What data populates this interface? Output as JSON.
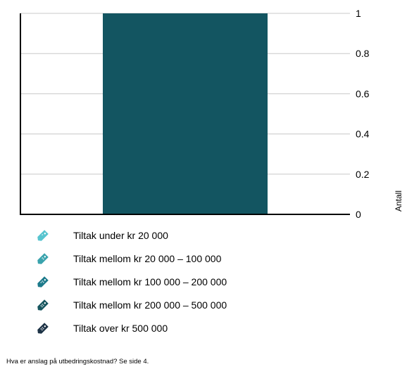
{
  "chart_data": {
    "type": "bar",
    "categories": [
      ""
    ],
    "values": [
      1
    ],
    "title": "",
    "xlabel": "",
    "ylabel": "Antall",
    "ylim": [
      0,
      1
    ],
    "yticks": [
      "0",
      "0.2",
      "0.4",
      "0.6",
      "0.8",
      "1"
    ],
    "ytick_values": [
      0,
      0.2,
      0.4,
      0.6,
      0.8,
      1
    ],
    "grid": true,
    "y_axis_side": "right",
    "bar_color": "#135561"
  },
  "legend": {
    "items": [
      {
        "label": "Tiltak under kr 20 000",
        "color": "#57c4cf",
        "icon": "price-tag-icon"
      },
      {
        "label": "Tiltak mellom kr 20 000 – 100 000",
        "color": "#3aa3ad",
        "icon": "price-tag-icon"
      },
      {
        "label": "Tiltak mellom kr 100 000 – 200 000",
        "color": "#1d7a8b",
        "icon": "price-tag-icon"
      },
      {
        "label": "Tiltak mellom kr 200 000 – 500 000",
        "color": "#17565f",
        "icon": "price-tag-icon"
      },
      {
        "label": "Tiltak over kr 500 000",
        "color": "#1d3346",
        "icon": "price-tag-icon"
      }
    ]
  },
  "footnote": "Hva er anslag på utbedringskostnad? Se side 4."
}
